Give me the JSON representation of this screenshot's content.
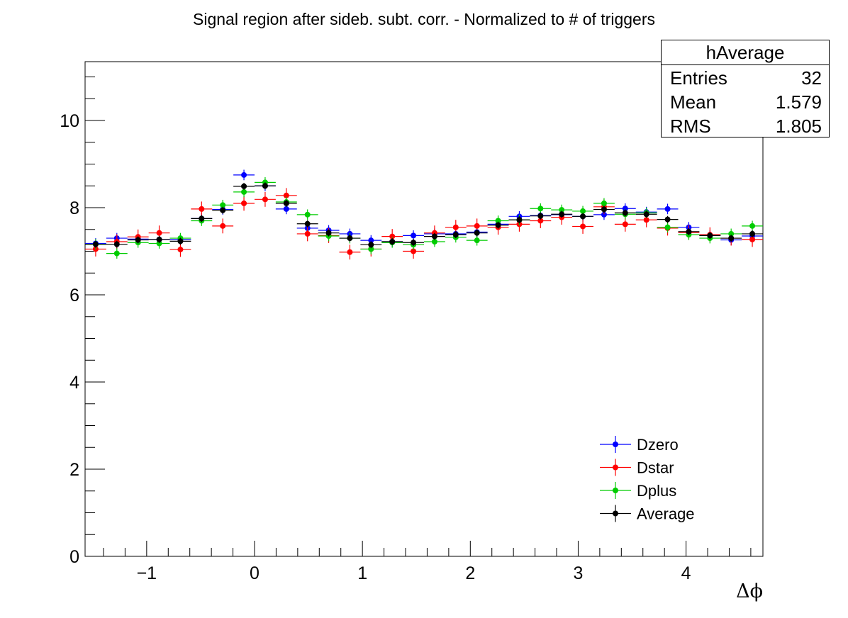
{
  "title": "Signal region after sideb. subt. corr. - Normalized to # of triggers",
  "stats": {
    "name": "hAverage",
    "rows": [
      {
        "label": "Entries",
        "value": "32"
      },
      {
        "label": "Mean",
        "value": "1.579"
      },
      {
        "label": "RMS",
        "value": "1.805"
      }
    ]
  },
  "chart_data": {
    "type": "scatter",
    "title": "Signal region after sideb. subt. corr. - Normalized to # of triggers",
    "xlabel": "Δϕ",
    "ylabel": "",
    "xlim": [
      -1.5708,
      4.7124
    ],
    "ylim": [
      0,
      11.35
    ],
    "bin_width": 0.19635,
    "x": [
      -1.4726,
      -1.2763,
      -1.0799,
      -0.8836,
      -0.6872,
      -0.4909,
      -0.2945,
      -0.0982,
      0.0982,
      0.2945,
      0.4909,
      0.6872,
      0.8836,
      1.0799,
      1.2763,
      1.4726,
      1.669,
      1.8653,
      2.0617,
      2.258,
      2.4544,
      2.6507,
      2.8471,
      3.0434,
      3.2398,
      3.4361,
      3.6325,
      3.8288,
      4.0252,
      4.2215,
      4.4179,
      4.6142
    ],
    "x_ticks": [
      -1,
      0,
      1,
      2,
      3,
      4
    ],
    "y_ticks": [
      0,
      2,
      4,
      6,
      8,
      10
    ],
    "x_tick_labels": [
      "−1",
      "0",
      "1",
      "2",
      "3",
      "4"
    ],
    "y_tick_labels": [
      "0",
      "2",
      "4",
      "6",
      "8",
      "10"
    ],
    "series": [
      {
        "name": "Dzero",
        "color": "#0000ff",
        "err": 0.12,
        "values": [
          7.18,
          7.3,
          7.28,
          7.27,
          7.27,
          7.75,
          7.96,
          8.75,
          8.5,
          7.97,
          7.53,
          7.48,
          7.4,
          7.25,
          7.22,
          7.36,
          7.4,
          7.4,
          7.44,
          7.62,
          7.8,
          7.82,
          7.84,
          7.8,
          7.84,
          7.98,
          7.9,
          7.97,
          7.55,
          7.36,
          7.26,
          7.35
        ]
      },
      {
        "name": "Dstar",
        "color": "#ff0000",
        "err": 0.17,
        "values": [
          7.05,
          7.22,
          7.33,
          7.42,
          7.04,
          7.97,
          7.58,
          8.1,
          8.19,
          8.28,
          7.4,
          7.36,
          6.98,
          7.05,
          7.34,
          7.0,
          7.42,
          7.55,
          7.58,
          7.55,
          7.62,
          7.7,
          7.78,
          7.57,
          8.02,
          7.62,
          7.72,
          7.53,
          7.43,
          7.38,
          7.3,
          7.27
        ]
      },
      {
        "name": "Dplus",
        "color": "#00cc00",
        "err": 0.12,
        "values": [
          7.16,
          6.95,
          7.2,
          7.18,
          7.3,
          7.7,
          8.06,
          8.36,
          8.58,
          8.13,
          7.84,
          7.35,
          7.3,
          7.05,
          7.2,
          7.15,
          7.22,
          7.32,
          7.25,
          7.7,
          7.72,
          7.98,
          7.95,
          7.92,
          8.1,
          7.85,
          7.88,
          7.55,
          7.38,
          7.3,
          7.4,
          7.58
        ]
      },
      {
        "name": "Average",
        "color": "#000000",
        "err": 0.08,
        "values": [
          7.16,
          7.16,
          7.26,
          7.27,
          7.23,
          7.75,
          7.94,
          8.49,
          8.5,
          8.1,
          7.63,
          7.42,
          7.3,
          7.15,
          7.22,
          7.2,
          7.34,
          7.38,
          7.42,
          7.6,
          7.72,
          7.81,
          7.85,
          7.8,
          7.96,
          7.88,
          7.85,
          7.73,
          7.45,
          7.36,
          7.3,
          7.4
        ]
      }
    ],
    "legend_position": "bottom-right",
    "grid": false
  }
}
